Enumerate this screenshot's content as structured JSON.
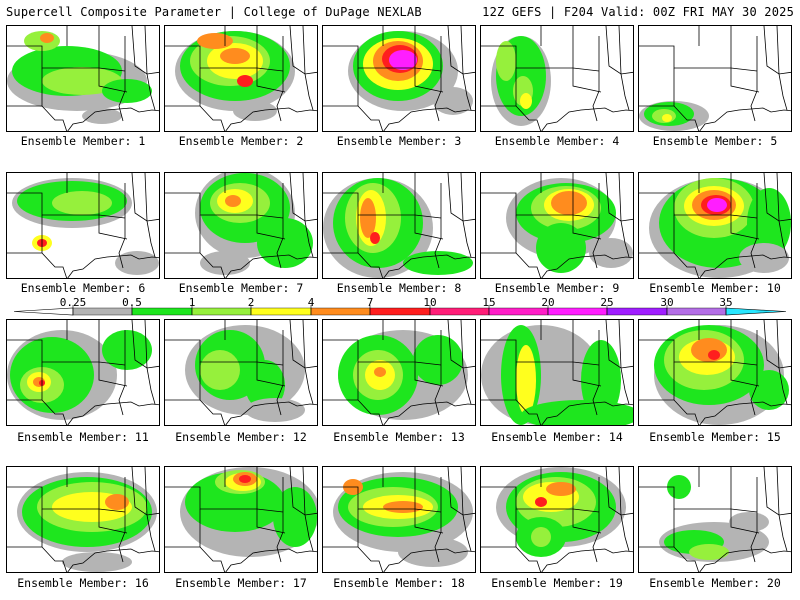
{
  "header": {
    "left_title": "Supercell Composite Parameter | College of DuPage NEXLAB",
    "right_title": "12Z GEFS | F204 Valid: 00Z FRI MAY 30 2025"
  },
  "legend": {
    "ticks": [
      "0.25",
      "0.5",
      "1",
      "2",
      "4",
      "7",
      "10",
      "15",
      "20",
      "25",
      "30",
      "35"
    ],
    "colors": {
      "lt_gray": "#d0d0d0",
      "gray": "#b4b4b4",
      "green": "#1ee61e",
      "lt_green": "#96f03c",
      "yellow": "#ffff1e",
      "orange": "#ff8c1e",
      "red": "#ff1e1e",
      "crimson": "#ff1e78",
      "pink": "#ff1ec8",
      "magenta": "#ff1eff",
      "purple": "#a01eff",
      "lavender": "#b46ee6",
      "cyan": "#28e6ff"
    }
  },
  "panels": [
    {
      "label": "Ensemble Member: 1"
    },
    {
      "label": "Ensemble Member: 2"
    },
    {
      "label": "Ensemble Member: 3"
    },
    {
      "label": "Ensemble Member: 4"
    },
    {
      "label": "Ensemble Member: 5"
    },
    {
      "label": "Ensemble Member: 6"
    },
    {
      "label": "Ensemble Member: 7"
    },
    {
      "label": "Ensemble Member: 8"
    },
    {
      "label": "Ensemble Member: 9"
    },
    {
      "label": "Ensemble Member: 10"
    },
    {
      "label": "Ensemble Member: 11"
    },
    {
      "label": "Ensemble Member: 12"
    },
    {
      "label": "Ensemble Member: 13"
    },
    {
      "label": "Ensemble Member: 14"
    },
    {
      "label": "Ensemble Member: 15"
    },
    {
      "label": "Ensemble Member: 16"
    },
    {
      "label": "Ensemble Member: 17"
    },
    {
      "label": "Ensemble Member: 18"
    },
    {
      "label": "Ensemble Member: 19"
    },
    {
      "label": "Ensemble Member: 20"
    }
  ]
}
